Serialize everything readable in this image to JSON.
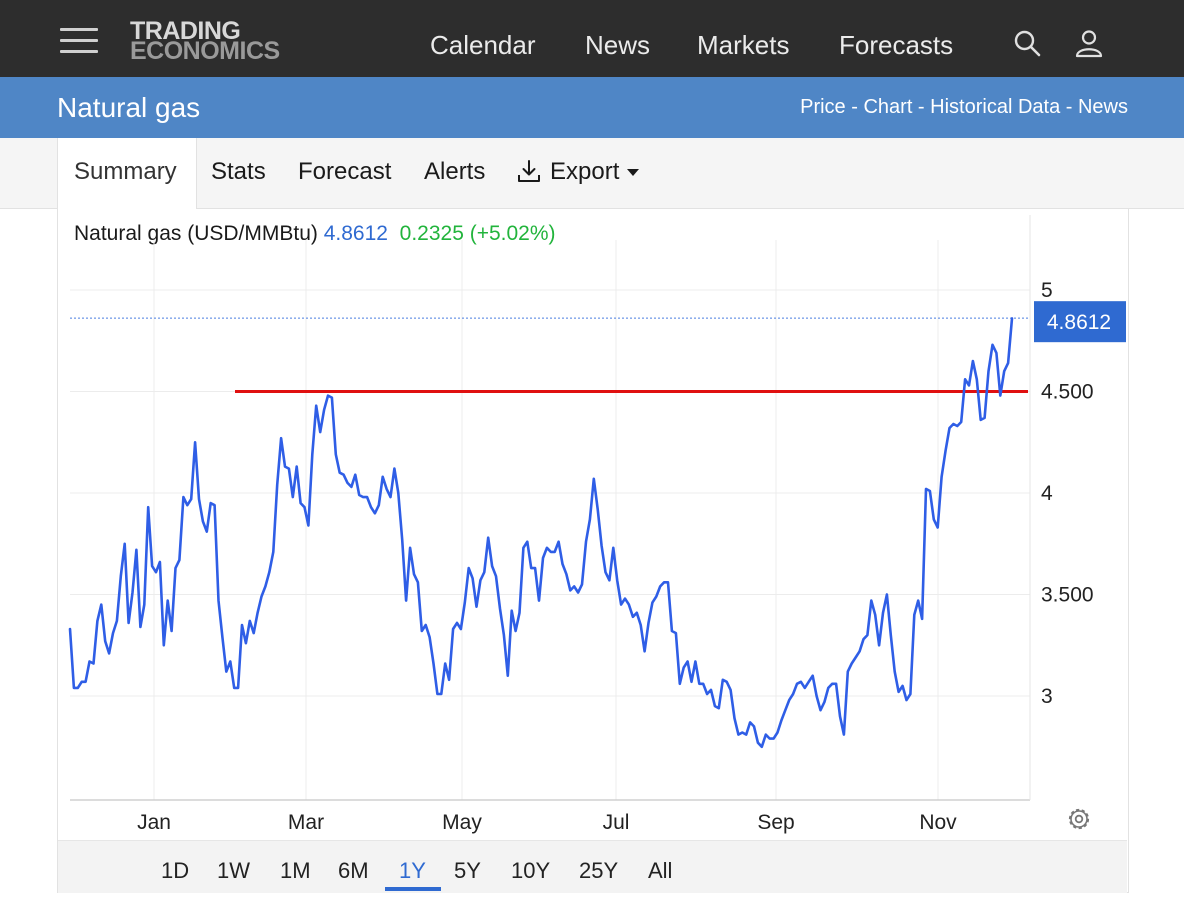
{
  "header": {
    "logo_line1": "TRADING",
    "logo_line2": "ECONOMICS",
    "nav": [
      "Calendar",
      "News",
      "Markets",
      "Forecasts"
    ],
    "icons": [
      "menu-icon",
      "search-icon",
      "user-icon"
    ]
  },
  "title_bar": {
    "title": "Natural gas",
    "breadcrumb": [
      "Price",
      "Chart",
      "Historical Data",
      "News"
    ],
    "separator": " - "
  },
  "tabs": {
    "items": [
      "Summary",
      "Stats",
      "Forecast",
      "Alerts",
      "Export"
    ],
    "active": "Summary",
    "export_icon": "download-icon"
  },
  "quote": {
    "name": "Natural gas (USD/MMBtu)",
    "price": "4.8612",
    "change": "0.2325 (+5.02%)",
    "price_color": "#2f6ad1",
    "change_color": "#22b43c"
  },
  "ranges": {
    "items": [
      "1D",
      "1W",
      "1M",
      "6M",
      "1Y",
      "5Y",
      "10Y",
      "25Y",
      "All"
    ],
    "active": "1Y"
  },
  "chart_data": {
    "type": "line",
    "x_tick_labels": [
      "Jan",
      "Mar",
      "May",
      "Jul",
      "Sep",
      "Nov"
    ],
    "y_tick_labels": [
      "5",
      "4.500",
      "4",
      "3.500",
      "3"
    ],
    "y_ticks": [
      5,
      4.5,
      4,
      3.5,
      3
    ],
    "ylim": [
      2.5,
      5.5
    ],
    "grid": true,
    "last_value": 4.8612,
    "last_value_label": "4.8612",
    "line_color": "#2f5ee6",
    "resistance_line": {
      "value": 4.5,
      "color": "#e01010"
    },
    "series": [
      {
        "values": [
          3.33,
          3.04,
          3.04,
          3.07,
          3.07,
          3.17,
          3.16,
          3.37,
          3.45,
          3.27,
          3.21,
          3.31,
          3.37,
          3.59,
          3.75,
          3.36,
          3.51,
          3.72,
          3.34,
          3.45,
          3.93,
          3.64,
          3.61,
          3.66,
          3.25,
          3.47,
          3.32,
          3.63,
          3.67,
          3.98,
          3.94,
          3.97,
          4.25,
          3.97,
          3.86,
          3.81,
          3.95,
          3.94,
          3.47,
          3.29,
          3.12,
          3.17,
          3.04,
          3.04,
          3.35,
          3.26,
          3.37,
          3.31,
          3.41,
          3.49,
          3.54,
          3.61,
          3.71,
          4.04,
          4.27,
          4.13,
          4.12,
          3.98,
          4.13,
          3.95,
          3.93,
          3.84,
          4.19,
          4.43,
          4.3,
          4.41,
          4.48,
          4.47,
          4.19,
          4.1,
          4.09,
          4.05,
          4.03,
          4.09,
          3.99,
          3.98,
          3.98,
          3.93,
          3.9,
          3.94,
          4.08,
          4.02,
          3.98,
          4.12,
          4.0,
          3.77,
          3.47,
          3.73,
          3.6,
          3.56,
          3.32,
          3.35,
          3.29,
          3.16,
          3.01,
          3.01,
          3.16,
          3.08,
          3.33,
          3.36,
          3.33,
          3.46,
          3.63,
          3.58,
          3.44,
          3.57,
          3.61,
          3.78,
          3.64,
          3.59,
          3.43,
          3.3,
          3.1,
          3.42,
          3.32,
          3.41,
          3.73,
          3.76,
          3.63,
          3.63,
          3.47,
          3.68,
          3.73,
          3.71,
          3.71,
          3.76,
          3.65,
          3.6,
          3.52,
          3.54,
          3.51,
          3.55,
          3.76,
          3.87,
          4.07,
          3.92,
          3.74,
          3.61,
          3.57,
          3.73,
          3.57,
          3.45,
          3.48,
          3.45,
          3.39,
          3.41,
          3.35,
          3.22,
          3.36,
          3.46,
          3.49,
          3.54,
          3.56,
          3.56,
          3.32,
          3.31,
          3.06,
          3.14,
          3.17,
          3.07,
          3.17,
          3.06,
          3.06,
          3.01,
          3.03,
          2.95,
          2.94,
          3.08,
          3.07,
          3.03,
          2.89,
          2.81,
          2.82,
          2.81,
          2.87,
          2.85,
          2.77,
          2.75,
          2.81,
          2.79,
          2.79,
          2.82,
          2.88,
          2.93,
          2.98,
          3.01,
          3.06,
          3.07,
          3.04,
          3.07,
          3.1,
          3.0,
          2.93,
          2.97,
          3.04,
          3.06,
          3.06,
          2.9,
          2.81,
          3.12,
          3.16,
          3.19,
          3.22,
          3.28,
          3.3,
          3.47,
          3.4,
          3.25,
          3.41,
          3.5,
          3.3,
          3.12,
          3.02,
          3.05,
          2.98,
          3.01,
          3.4,
          3.47,
          3.38,
          4.02,
          4.01,
          3.87,
          3.83,
          4.08,
          4.21,
          4.32,
          4.34,
          4.33,
          4.35,
          4.56,
          4.53,
          4.65,
          4.56,
          4.36,
          4.37,
          4.6,
          4.73,
          4.69,
          4.48,
          4.6,
          4.64,
          4.86
        ]
      }
    ]
  }
}
